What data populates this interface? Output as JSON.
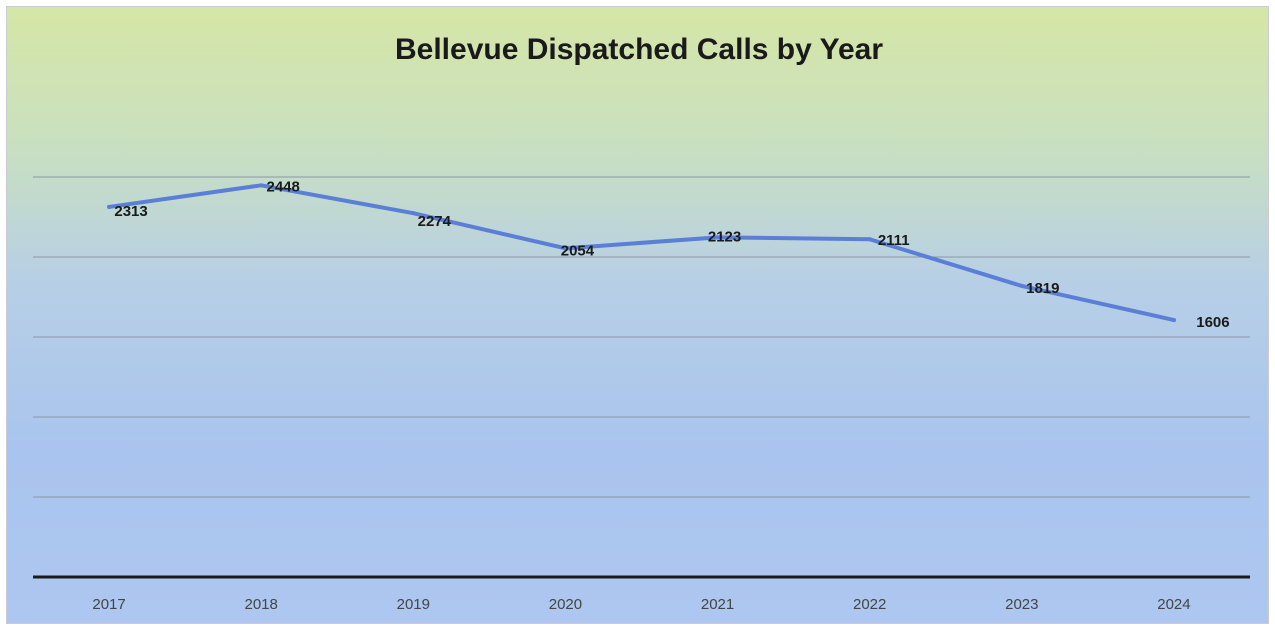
{
  "chart_data": {
    "type": "line",
    "title": "Bellevue Dispatched Calls by Year",
    "categories": [
      "2017",
      "2018",
      "2019",
      "2020",
      "2021",
      "2022",
      "2023",
      "2024"
    ],
    "series": [
      {
        "values": [
          2313,
          2448,
          2274,
          2054,
          2123,
          2111,
          1819,
          1606
        ]
      }
    ],
    "ylim": [
      0,
      3000
    ],
    "grid": true,
    "line_color": "#5b7fd6",
    "axis_color": "#1a1a1a"
  }
}
